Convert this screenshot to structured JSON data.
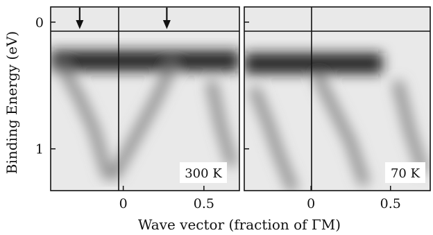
{
  "chart_data": [
    {
      "type": "heatmap",
      "panel": "left",
      "annotation": "300 K",
      "xlim": [
        -0.45,
        0.72
      ],
      "ylim": [
        -0.12,
        1.33
      ],
      "x_ticks": [
        {
          "value": 0,
          "label": "0"
        },
        {
          "value": 0.5,
          "label": "0.5"
        }
      ],
      "y_ticks": [
        {
          "value": 0,
          "label": "0"
        },
        {
          "value": 1,
          "label": "1"
        }
      ],
      "arrows_at_x": [
        -0.27,
        0.27
      ],
      "features": [
        {
          "kind": "flat_band",
          "energy": 0.3,
          "x_from": -0.45,
          "x_to": 0.72
        },
        {
          "kind": "dispersing_band",
          "points": [
            [
              -0.38,
              0.35
            ],
            [
              -0.27,
              0.6
            ],
            [
              -0.18,
              0.85
            ],
            [
              -0.1,
              1.2
            ]
          ]
        },
        {
          "kind": "dispersing_band",
          "points": [
            [
              -0.05,
              1.2
            ],
            [
              0.08,
              0.9
            ],
            [
              0.2,
              0.62
            ],
            [
              0.3,
              0.35
            ]
          ]
        },
        {
          "kind": "dispersing_band",
          "points": [
            [
              0.55,
              0.5
            ],
            [
              0.6,
              0.8
            ],
            [
              0.67,
              1.1
            ]
          ]
        }
      ]
    },
    {
      "type": "heatmap",
      "panel": "right",
      "annotation": "70 K",
      "xlim": [
        -0.42,
        0.75
      ],
      "ylim": [
        -0.12,
        1.33
      ],
      "x_ticks": [
        {
          "value": 0,
          "label": "0"
        },
        {
          "value": 0.5,
          "label": "0.5"
        }
      ],
      "features": [
        {
          "kind": "flat_band",
          "energy": 0.32,
          "x_from": -0.42,
          "x_to": 0.45
        },
        {
          "kind": "dispersing_band",
          "points": [
            [
              -0.35,
              0.55
            ],
            [
              -0.27,
              0.8
            ],
            [
              -0.2,
              1.05
            ],
            [
              -0.12,
              1.3
            ]
          ]
        },
        {
          "kind": "dispersing_band",
          "points": [
            [
              0.05,
              0.45
            ],
            [
              0.15,
              0.7
            ],
            [
              0.25,
              0.95
            ],
            [
              0.33,
              1.25
            ]
          ]
        },
        {
          "kind": "dispersing_band",
          "points": [
            [
              0.55,
              0.5
            ],
            [
              0.62,
              0.85
            ],
            [
              0.7,
              1.15
            ]
          ]
        }
      ]
    }
  ],
  "ylabel": "Binding Energy (eV)",
  "xlabel": "Wave vector (fraction of ΓM)",
  "colors": {
    "band": "#1a1a1a",
    "axes": "#111111",
    "background": "#ffffff"
  }
}
